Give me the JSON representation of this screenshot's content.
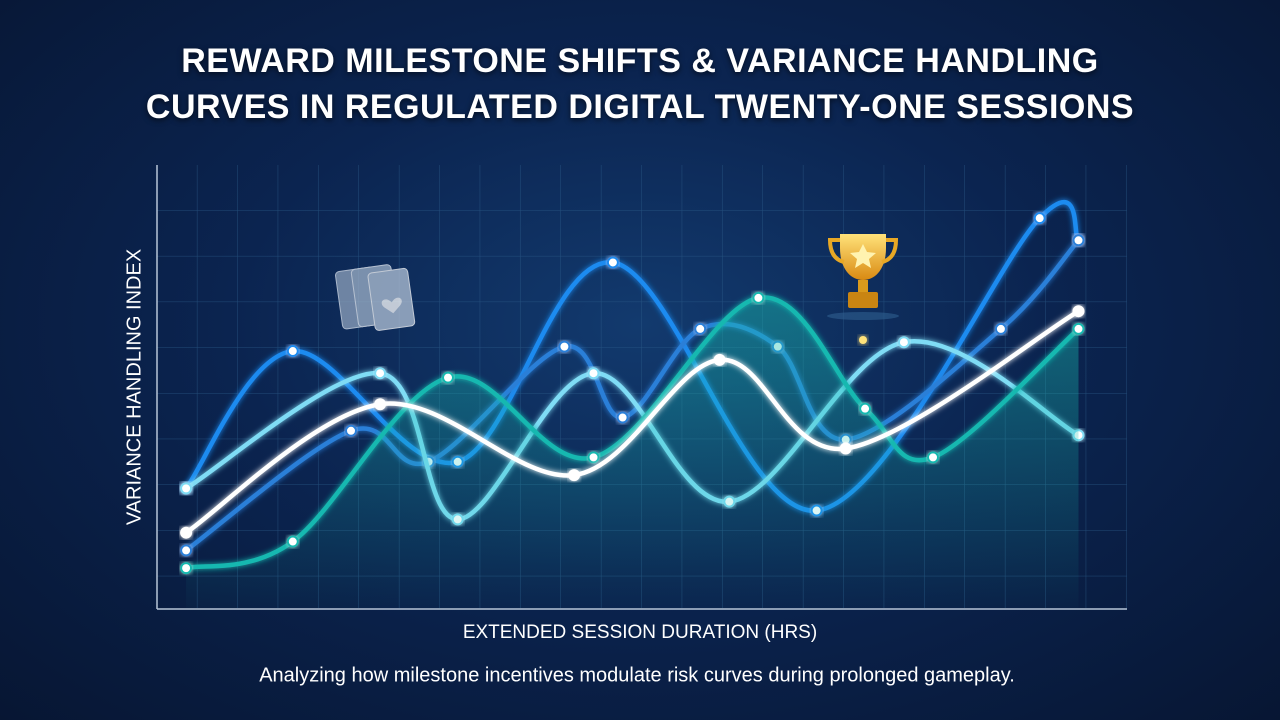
{
  "chart_data": {
    "type": "line",
    "title": [
      "REWARD MILESTONE SHIFTS & VARIANCE HANDLING",
      "CURVES IN REGULATED DIGITAL TWENTY-ONE SESSIONS"
    ],
    "x_label": "EXTENDED SESSION DURATION (HRS)",
    "y_label": "VARIANCE HANDLING INDEX",
    "subtitle": "Analyzing how milestone incentives modulate risk curves during prolonged gameplay.",
    "xlim": [
      0,
      10
    ],
    "ylim": [
      0,
      10
    ],
    "series": [
      {
        "color": "#1f8bf0",
        "x": [
          0.3,
          1.4,
          3.1,
          4.7,
          6.8,
          9.1,
          9.5
        ],
        "values": [
          2.7,
          5.8,
          3.3,
          7.8,
          2.2,
          8.8,
          8.3
        ]
      },
      {
        "color": "#2a7fd8",
        "x": [
          0.3,
          2.0,
          2.8,
          4.2,
          4.8,
          5.6,
          6.4,
          7.1,
          8.7,
          9.5
        ],
        "values": [
          1.3,
          4.0,
          3.3,
          5.9,
          4.3,
          6.3,
          5.9,
          3.8,
          6.3,
          8.3
        ]
      },
      {
        "color": "#7fdcf5",
        "x": [
          0.3,
          2.3,
          3.1,
          4.5,
          5.9,
          7.7,
          9.5
        ],
        "values": [
          2.7,
          5.3,
          2.0,
          5.3,
          2.4,
          6.0,
          3.9
        ]
      },
      {
        "color": "#18b8b0",
        "x": [
          0.3,
          1.4,
          3.0,
          4.5,
          6.2,
          7.3,
          8.0,
          9.5
        ],
        "values": [
          0.9,
          1.5,
          5.2,
          3.4,
          7.0,
          4.5,
          3.4,
          6.3
        ]
      },
      {
        "color": "#ffffff",
        "x": [
          0.3,
          2.3,
          4.3,
          5.8,
          7.1,
          9.5
        ],
        "values": [
          1.7,
          4.6,
          3.0,
          5.6,
          3.6,
          6.7
        ]
      }
    ]
  }
}
